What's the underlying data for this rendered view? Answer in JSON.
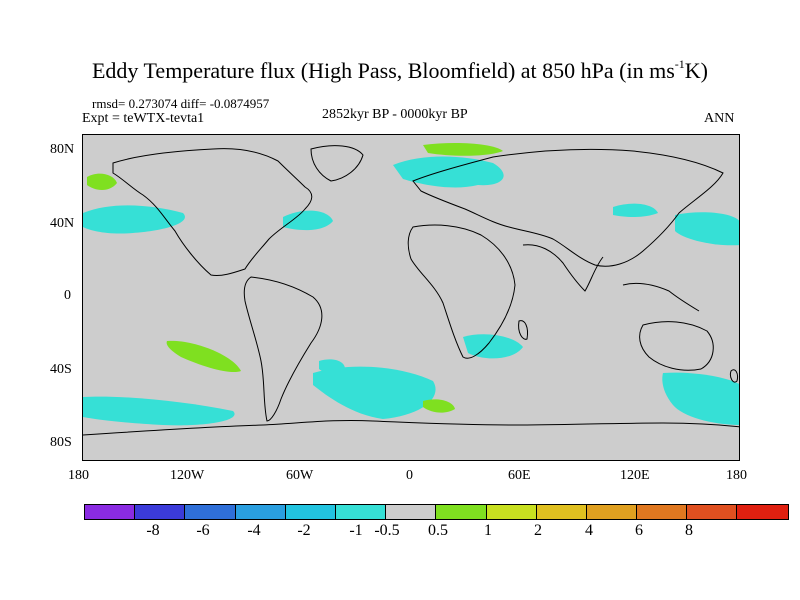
{
  "title_main": "Eddy Temperature flux (High Pass, Bloomfield) at 850 hPa (in ms",
  "title_sup": "-1",
  "title_end": "K)",
  "stats": "rmsd= 0.273074 diff= -0.0874957",
  "experiment": "Expt = teWTX-tevta1",
  "period": "2852kyr BP - 0000kyr BP",
  "season": "ANN",
  "lat_labels": [
    "80N",
    "40N",
    "0",
    "40S",
    "80S"
  ],
  "lon_labels": [
    "180",
    "120W",
    "60W",
    "0",
    "60E",
    "120E",
    "180"
  ],
  "colorbar": {
    "colors": [
      "#8a2be2",
      "#3b3bd9",
      "#2f6fd8",
      "#2a9fe0",
      "#22c4e0",
      "#36e0d6",
      "#cdcdcd",
      "#7fe020",
      "#c8e020",
      "#e0c020",
      "#e0a020",
      "#e07820",
      "#e05020",
      "#e02010"
    ],
    "labels": [
      "-8",
      "-6",
      "-4",
      "-2",
      "-1",
      "-0.5",
      "0.5",
      "1",
      "2",
      "4",
      "6",
      "8"
    ]
  },
  "map_colors": {
    "neutral": "#cdcdcd",
    "neg_weak": "#36e0d6",
    "pos_weak": "#7fe020",
    "coast": "#000000"
  }
}
